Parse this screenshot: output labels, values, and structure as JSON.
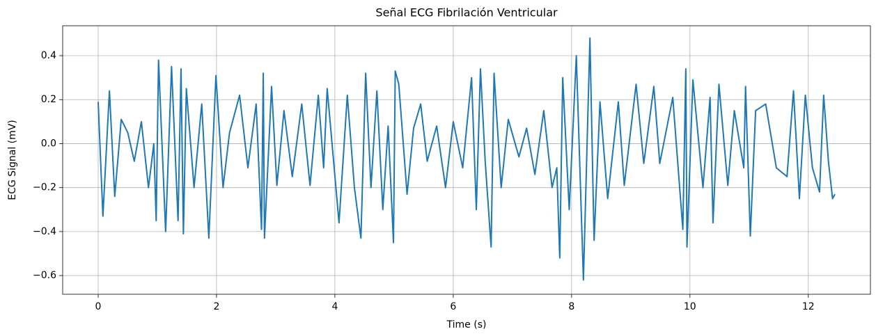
{
  "chart_data": {
    "type": "line",
    "title": "Señal ECG Fibrilación Ventricular",
    "x_label": "Time (s)",
    "y_label": "ECG Signal (mV)",
    "xlim": [
      -0.6,
      13.05
    ],
    "ylim": [
      -0.685,
      0.536
    ],
    "xticks": [
      0,
      2,
      4,
      6,
      8,
      10,
      12
    ],
    "yticks": [
      {
        "value": -0.6,
        "label": "−0.6"
      },
      {
        "value": -0.4,
        "label": "−0.4"
      },
      {
        "value": -0.2,
        "label": "−0.2"
      },
      {
        "value": 0,
        "label": "0.0"
      },
      0.2,
      0.4
    ],
    "grid": true,
    "series": [
      {
        "color": "#1f77b4",
        "x": [
          0,
          0.08,
          0.19,
          0.28,
          0.39,
          0.5,
          0.61,
          0.73,
          0.85,
          0.94,
          0.98,
          1.02,
          1.14,
          1.24,
          1.35,
          1.4,
          1.44,
          1.49,
          1.62,
          1.75,
          1.87,
          1.99,
          2.11,
          2.22,
          2.39,
          2.53,
          2.67,
          2.76,
          2.79,
          2.81,
          2.93,
          3.02,
          3.14,
          3.28,
          3.44,
          3.58,
          3.72,
          3.81,
          3.87,
          4.07,
          4.21,
          4.33,
          4.44,
          4.52,
          4.61,
          4.71,
          4.81,
          4.9,
          4.99,
          5.02,
          5.08,
          5.22,
          5.33,
          5.45,
          5.56,
          5.72,
          5.87,
          6.0,
          6.16,
          6.31,
          6.39,
          6.46,
          6.54,
          6.64,
          6.69,
          6.81,
          6.93,
          7.11,
          7.24,
          7.38,
          7.53,
          7.67,
          7.75,
          7.8,
          7.85,
          7.96,
          8.08,
          8.2,
          8.31,
          8.38,
          8.48,
          8.61,
          8.79,
          8.89,
          9.09,
          9.22,
          9.39,
          9.49,
          9.71,
          9.88,
          9.93,
          9.95,
          10.05,
          10.22,
          10.34,
          10.39,
          10.49,
          10.64,
          10.75,
          10.91,
          10.94,
          11.02,
          11.11,
          11.28,
          11.46,
          11.64,
          11.75,
          11.85,
          11.95,
          12.07,
          12.19,
          12.26,
          12.34,
          12.41,
          12.45
        ],
        "values": [
          0.19,
          -0.33,
          0.24,
          -0.24,
          0.11,
          0.05,
          -0.08,
          0.1,
          -0.2,
          0.0,
          -0.35,
          0.38,
          -0.4,
          0.35,
          -0.35,
          0.34,
          -0.41,
          0.25,
          -0.2,
          0.18,
          -0.43,
          0.31,
          -0.2,
          0.05,
          0.22,
          -0.11,
          0.18,
          -0.39,
          0.32,
          -0.43,
          0.26,
          -0.19,
          0.15,
          -0.15,
          0.18,
          -0.19,
          0.22,
          -0.11,
          0.25,
          -0.36,
          0.22,
          -0.2,
          -0.43,
          0.32,
          -0.2,
          0.24,
          -0.3,
          0.08,
          -0.45,
          0.33,
          0.27,
          -0.23,
          0.07,
          0.18,
          -0.08,
          0.08,
          -0.2,
          0.1,
          -0.11,
          0.3,
          -0.3,
          0.34,
          -0.08,
          -0.47,
          0.32,
          -0.2,
          0.11,
          -0.06,
          0.07,
          -0.14,
          0.15,
          -0.2,
          -0.11,
          -0.52,
          0.3,
          -0.3,
          0.4,
          -0.62,
          0.48,
          -0.44,
          0.19,
          -0.25,
          0.19,
          -0.19,
          0.27,
          -0.09,
          0.26,
          -0.09,
          0.21,
          -0.39,
          0.34,
          -0.47,
          0.29,
          -0.2,
          0.21,
          -0.36,
          0.27,
          -0.19,
          0.15,
          -0.11,
          0.26,
          -0.42,
          0.15,
          0.18,
          -0.11,
          -0.15,
          0.24,
          -0.25,
          0.22,
          -0.11,
          -0.22,
          0.22,
          -0.08,
          -0.25,
          -0.23
        ]
      }
    ]
  }
}
